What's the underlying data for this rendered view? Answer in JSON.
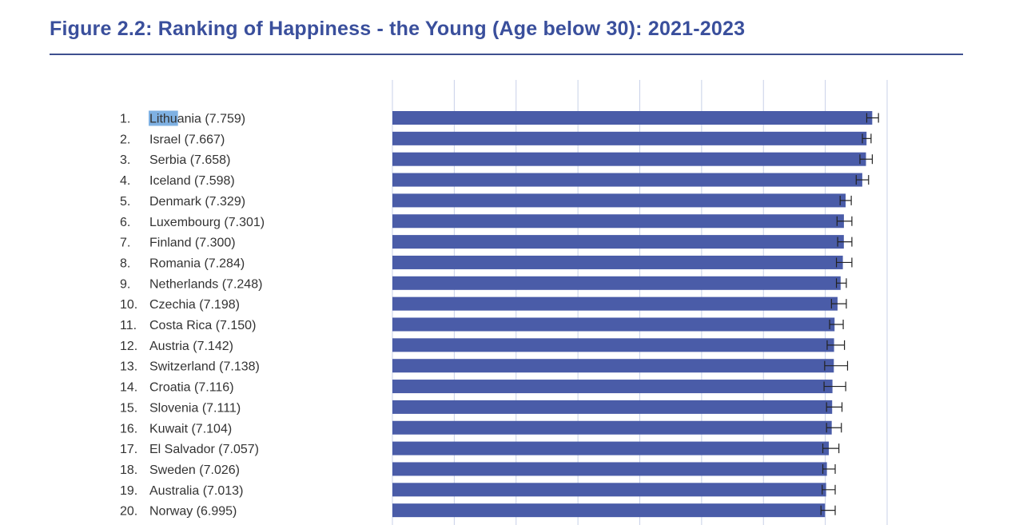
{
  "title": "Figure 2.2: Ranking of Happiness - the Young (Age below 30): 2021-2023",
  "colors": {
    "title": "#3a4f9c",
    "bar": "#4a5ca8",
    "grid": "#c8d0e8",
    "error": "#222222",
    "highlight": "#7fb1e3"
  },
  "chart_data": {
    "type": "bar",
    "orientation": "horizontal",
    "title": "Figure 2.2: Ranking of Happiness - the Young (Age below 30): 2021-2023",
    "xlabel": "",
    "ylabel": "",
    "xlim": [
      0,
      8
    ],
    "grid": true,
    "highlight": {
      "row": 0,
      "text": "Lithu"
    },
    "items": [
      {
        "rank": "1.",
        "label": "Lithuania (7.759)",
        "value": 7.759,
        "lo": 7.67,
        "hi": 7.86
      },
      {
        "rank": "2.",
        "label": "Israel (7.667)",
        "value": 7.667,
        "lo": 7.6,
        "hi": 7.74
      },
      {
        "rank": "3.",
        "label": "Serbia (7.658)",
        "value": 7.658,
        "lo": 7.56,
        "hi": 7.76
      },
      {
        "rank": "4.",
        "label": "Iceland (7.598)",
        "value": 7.598,
        "lo": 7.5,
        "hi": 7.7
      },
      {
        "rank": "5.",
        "label": "Denmark (7.329)",
        "value": 7.329,
        "lo": 7.24,
        "hi": 7.42
      },
      {
        "rank": "6.",
        "label": "Luxembourg (7.301)",
        "value": 7.301,
        "lo": 7.19,
        "hi": 7.43
      },
      {
        "rank": "7.",
        "label": "Finland (7.300)",
        "value": 7.3,
        "lo": 7.2,
        "hi": 7.43
      },
      {
        "rank": "8.",
        "label": "Romania (7.284)",
        "value": 7.284,
        "lo": 7.18,
        "hi": 7.43
      },
      {
        "rank": "9.",
        "label": "Netherlands (7.248)",
        "value": 7.248,
        "lo": 7.18,
        "hi": 7.34
      },
      {
        "rank": "10.",
        "label": "Czechia (7.198)",
        "value": 7.198,
        "lo": 7.1,
        "hi": 7.34
      },
      {
        "rank": "11.",
        "label": "Costa Rica (7.150)",
        "value": 7.15,
        "lo": 7.07,
        "hi": 7.29
      },
      {
        "rank": "12.",
        "label": "Austria (7.142)",
        "value": 7.142,
        "lo": 7.03,
        "hi": 7.31
      },
      {
        "rank": "13.",
        "label": "Switzerland (7.138)",
        "value": 7.138,
        "lo": 6.99,
        "hi": 7.36
      },
      {
        "rank": "14.",
        "label": "Croatia (7.116)",
        "value": 7.116,
        "lo": 6.98,
        "hi": 7.33
      },
      {
        "rank": "15.",
        "label": "Slovenia (7.111)",
        "value": 7.111,
        "lo": 7.02,
        "hi": 7.27
      },
      {
        "rank": "16.",
        "label": "Kuwait (7.104)",
        "value": 7.104,
        "lo": 7.02,
        "hi": 7.26
      },
      {
        "rank": "17.",
        "label": "El Salvador (7.057)",
        "value": 7.057,
        "lo": 6.96,
        "hi": 7.22
      },
      {
        "rank": "18.",
        "label": "Sweden (7.026)",
        "value": 7.026,
        "lo": 6.96,
        "hi": 7.16
      },
      {
        "rank": "19.",
        "label": "Australia (7.013)",
        "value": 7.013,
        "lo": 6.95,
        "hi": 7.16
      },
      {
        "rank": "20.",
        "label": "Norway (6.995)",
        "value": 6.995,
        "lo": 6.93,
        "hi": 7.16
      }
    ]
  }
}
